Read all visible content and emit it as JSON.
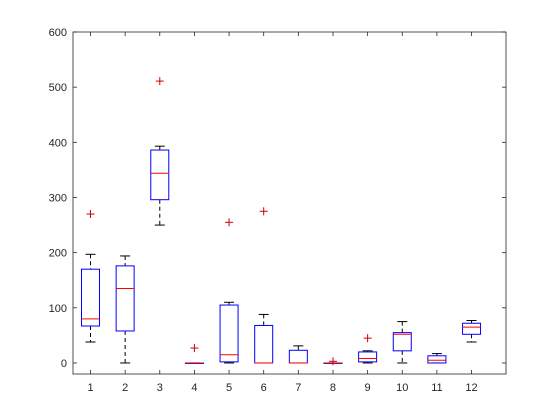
{
  "chart_data": {
    "type": "boxplot",
    "title": "",
    "xlabel": "",
    "ylabel": "",
    "categories": [
      "1",
      "2",
      "3",
      "4",
      "5",
      "6",
      "7",
      "8",
      "9",
      "10",
      "11",
      "12"
    ],
    "y_ticks": [
      0,
      100,
      200,
      300,
      400,
      500,
      600
    ],
    "ylim": [
      -20,
      600
    ],
    "grid": false,
    "colors": {
      "box": "#0000ff",
      "median": "#ff0000",
      "whisker": "#000000",
      "outlier": "#cc0000",
      "axis": "#262626"
    },
    "boxes": [
      {
        "category": "1",
        "lower_whisker": 38,
        "q1": 67,
        "median": 80,
        "q3": 170,
        "upper_whisker": 197,
        "outliers": [
          270
        ]
      },
      {
        "category": "2",
        "lower_whisker": 0,
        "q1": 58,
        "median": 135,
        "q3": 176,
        "upper_whisker": 194,
        "outliers": []
      },
      {
        "category": "3",
        "lower_whisker": 250,
        "q1": 296,
        "median": 344,
        "q3": 386,
        "upper_whisker": 393,
        "outliers": [
          511
        ]
      },
      {
        "category": "4",
        "lower_whisker": 0,
        "q1": 0,
        "median": 0,
        "q3": 0,
        "upper_whisker": 0,
        "outliers": [
          27
        ]
      },
      {
        "category": "5",
        "lower_whisker": 0,
        "q1": 2,
        "median": 15,
        "q3": 105,
        "upper_whisker": 110,
        "outliers": [
          255
        ]
      },
      {
        "category": "6",
        "lower_whisker": 0,
        "q1": 0,
        "median": 0,
        "q3": 68,
        "upper_whisker": 88,
        "outliers": [
          275
        ]
      },
      {
        "category": "7",
        "lower_whisker": 0,
        "q1": 0,
        "median": 0,
        "q3": 23,
        "upper_whisker": 31,
        "outliers": []
      },
      {
        "category": "8",
        "lower_whisker": 0,
        "q1": 0,
        "median": 0,
        "q3": 0,
        "upper_whisker": 0,
        "outliers": [
          3
        ]
      },
      {
        "category": "9",
        "lower_whisker": 0,
        "q1": 2,
        "median": 8,
        "q3": 20,
        "upper_whisker": 22,
        "outliers": [
          45
        ]
      },
      {
        "category": "10",
        "lower_whisker": 0,
        "q1": 22,
        "median": 52,
        "q3": 55,
        "upper_whisker": 75,
        "outliers": []
      },
      {
        "category": "11",
        "lower_whisker": 0,
        "q1": 0,
        "median": 5,
        "q3": 13,
        "upper_whisker": 17,
        "outliers": []
      },
      {
        "category": "12",
        "lower_whisker": 38,
        "q1": 52,
        "median": 65,
        "q3": 72,
        "upper_whisker": 77,
        "outliers": []
      }
    ]
  }
}
